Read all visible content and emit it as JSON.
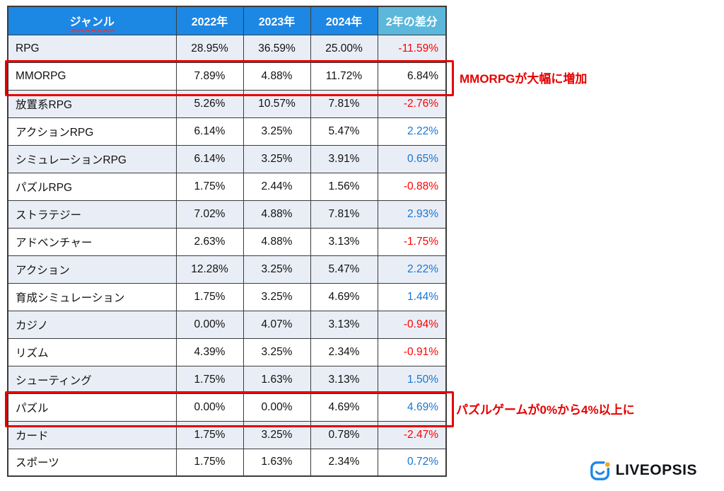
{
  "chart_data": {
    "type": "table",
    "title": "",
    "columns": [
      "ジャンル",
      "2022年",
      "2023年",
      "2024年",
      "2年の差分"
    ],
    "rows": [
      {
        "genre": "RPG",
        "y2022": "28.95%",
        "y2023": "36.59%",
        "y2024": "25.00%",
        "diff": "-11.59%",
        "diff_color": "red",
        "highlight": false
      },
      {
        "genre": "MMORPG",
        "y2022": "7.89%",
        "y2023": "4.88%",
        "y2024": "11.72%",
        "diff": "6.84%",
        "diff_color": "black",
        "highlight": true
      },
      {
        "genre": "放置系RPG",
        "y2022": "5.26%",
        "y2023": "10.57%",
        "y2024": "7.81%",
        "diff": "-2.76%",
        "diff_color": "red",
        "highlight": false
      },
      {
        "genre": "アクションRPG",
        "y2022": "6.14%",
        "y2023": "3.25%",
        "y2024": "5.47%",
        "diff": "2.22%",
        "diff_color": "blue",
        "highlight": false
      },
      {
        "genre": "シミュレーションRPG",
        "y2022": "6.14%",
        "y2023": "3.25%",
        "y2024": "3.91%",
        "diff": "0.65%",
        "diff_color": "blue",
        "highlight": false
      },
      {
        "genre": "パズルRPG",
        "y2022": "1.75%",
        "y2023": "2.44%",
        "y2024": "1.56%",
        "diff": "-0.88%",
        "diff_color": "red",
        "highlight": false
      },
      {
        "genre": "ストラテジー",
        "y2022": "7.02%",
        "y2023": "4.88%",
        "y2024": "7.81%",
        "diff": "2.93%",
        "diff_color": "blue",
        "highlight": false
      },
      {
        "genre": "アドベンチャー",
        "y2022": "2.63%",
        "y2023": "4.88%",
        "y2024": "3.13%",
        "diff": "-1.75%",
        "diff_color": "red",
        "highlight": false
      },
      {
        "genre": "アクション",
        "y2022": "12.28%",
        "y2023": "3.25%",
        "y2024": "5.47%",
        "diff": "2.22%",
        "diff_color": "blue",
        "highlight": false
      },
      {
        "genre": "育成シミュレーション",
        "y2022": "1.75%",
        "y2023": "3.25%",
        "y2024": "4.69%",
        "diff": "1.44%",
        "diff_color": "blue",
        "highlight": false
      },
      {
        "genre": "カジノ",
        "y2022": "0.00%",
        "y2023": "4.07%",
        "y2024": "3.13%",
        "diff": "-0.94%",
        "diff_color": "red",
        "highlight": false
      },
      {
        "genre": "リズム",
        "y2022": "4.39%",
        "y2023": "3.25%",
        "y2024": "2.34%",
        "diff": "-0.91%",
        "diff_color": "red",
        "highlight": false
      },
      {
        "genre": "シューティング",
        "y2022": "1.75%",
        "y2023": "1.63%",
        "y2024": "3.13%",
        "diff": "1.50%",
        "diff_color": "blue",
        "highlight": false
      },
      {
        "genre": "パズル",
        "y2022": "0.00%",
        "y2023": "0.00%",
        "y2024": "4.69%",
        "diff": "4.69%",
        "diff_color": "blue",
        "highlight": true
      },
      {
        "genre": "カード",
        "y2022": "1.75%",
        "y2023": "3.25%",
        "y2024": "0.78%",
        "diff": "-2.47%",
        "diff_color": "red",
        "highlight": false
      },
      {
        "genre": "スポーツ",
        "y2022": "1.75%",
        "y2023": "1.63%",
        "y2024": "2.34%",
        "diff": "0.72%",
        "diff_color": "blue",
        "highlight": false
      }
    ]
  },
  "annotations": {
    "mmorpg": "MMORPGが大幅に増加",
    "puzzle": "パズルゲームが0%から4%以上に"
  },
  "logo": {
    "brand": "LIVEOPSIS"
  },
  "colors": {
    "header_blue": "#1d87e4",
    "header_teal": "#5bb7db",
    "negative_red": "#ff0000",
    "positive_blue": "#1976d2",
    "row_shade": "#e9eef6",
    "highlight_red": "#e60000"
  }
}
